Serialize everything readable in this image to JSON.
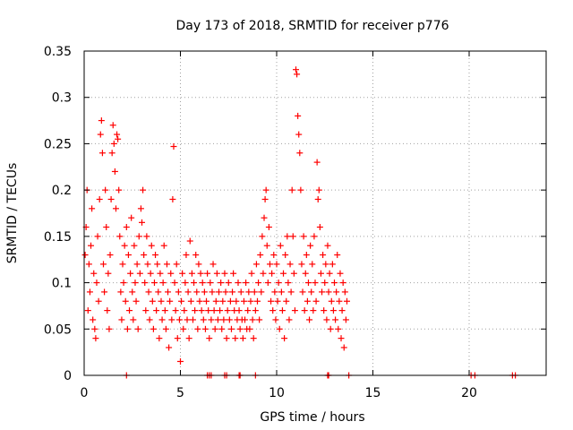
{
  "chart_data": {
    "type": "scatter",
    "title": "Day 173 of 2018, SRMTID for receiver p776",
    "xlabel": "GPS time / hours",
    "ylabel": "SRMTID / TECUs",
    "xlim": [
      0,
      24
    ],
    "ylim": [
      0,
      0.35
    ],
    "xticks": [
      0,
      5,
      10,
      15,
      20
    ],
    "xtick_labels": [
      "0",
      "5",
      "10",
      "15",
      "20"
    ],
    "yticks": [
      0,
      0.05,
      0.1,
      0.15,
      0.2,
      0.25,
      0.3,
      0.35
    ],
    "ytick_labels": [
      "0",
      "0.05",
      "0.1",
      "0.15",
      "0.2",
      "0.25",
      "0.3",
      "0.35"
    ],
    "grid": true,
    "marker": "+",
    "series": [
      {
        "name": "SRMTID",
        "color": "#ff0000",
        "points": [
          [
            0.05,
            0.13
          ],
          [
            0.1,
            0.16
          ],
          [
            0.15,
            0.2
          ],
          [
            0.2,
            0.07
          ],
          [
            0.25,
            0.12
          ],
          [
            0.3,
            0.09
          ],
          [
            0.35,
            0.14
          ],
          [
            0.4,
            0.18
          ],
          [
            0.45,
            0.06
          ],
          [
            0.5,
            0.11
          ],
          [
            0.55,
            0.05
          ],
          [
            0.6,
            0.04
          ],
          [
            0.65,
            0.1
          ],
          [
            0.7,
            0.15
          ],
          [
            0.75,
            0.08
          ],
          [
            0.8,
            0.19
          ],
          [
            0.85,
            0.26
          ],
          [
            0.9,
            0.275
          ],
          [
            0.95,
            0.24
          ],
          [
            1.0,
            0.12
          ],
          [
            1.05,
            0.09
          ],
          [
            1.1,
            0.2
          ],
          [
            1.15,
            0.16
          ],
          [
            1.2,
            0.07
          ],
          [
            1.25,
            0.11
          ],
          [
            1.3,
            0.05
          ],
          [
            1.35,
            0.13
          ],
          [
            1.4,
            0.19
          ],
          [
            1.45,
            0.24
          ],
          [
            1.5,
            0.27
          ],
          [
            1.55,
            0.25
          ],
          [
            1.6,
            0.22
          ],
          [
            1.65,
            0.18
          ],
          [
            1.7,
            0.26
          ],
          [
            1.75,
            0.255
          ],
          [
            1.8,
            0.2
          ],
          [
            1.85,
            0.15
          ],
          [
            1.9,
            0.09
          ],
          [
            1.95,
            0.06
          ],
          [
            2.0,
            0.12
          ],
          [
            2.05,
            0.1
          ],
          [
            2.1,
            0.14
          ],
          [
            2.15,
            0.08
          ],
          [
            2.2,
            0.16
          ],
          [
            2.25,
            0.05
          ],
          [
            2.3,
            0.13
          ],
          [
            2.35,
            0.07
          ],
          [
            2.4,
            0.11
          ],
          [
            2.45,
            0.17
          ],
          [
            2.5,
            0.09
          ],
          [
            2.55,
            0.06
          ],
          [
            2.6,
            0.14
          ],
          [
            2.65,
            0.1
          ],
          [
            2.7,
            0.08
          ],
          [
            2.75,
            0.12
          ],
          [
            2.8,
            0.05
          ],
          [
            2.85,
            0.15
          ],
          [
            2.9,
            0.11
          ],
          [
            2.95,
            0.18
          ],
          [
            3.0,
            0.165
          ],
          [
            3.05,
            0.2
          ],
          [
            3.1,
            0.13
          ],
          [
            3.15,
            0.1
          ],
          [
            3.2,
            0.07
          ],
          [
            3.25,
            0.15
          ],
          [
            3.3,
            0.12
          ],
          [
            3.35,
            0.09
          ],
          [
            3.4,
            0.06
          ],
          [
            3.45,
            0.11
          ],
          [
            3.5,
            0.14
          ],
          [
            3.55,
            0.08
          ],
          [
            3.6,
            0.05
          ],
          [
            3.65,
            0.1
          ],
          [
            3.7,
            0.13
          ],
          [
            3.75,
            0.07
          ],
          [
            3.8,
            0.12
          ],
          [
            3.85,
            0.09
          ],
          [
            3.9,
            0.04
          ],
          [
            3.95,
            0.11
          ],
          [
            4.0,
            0.08
          ],
          [
            4.05,
            0.06
          ],
          [
            4.1,
            0.1
          ],
          [
            4.15,
            0.14
          ],
          [
            4.2,
            0.07
          ],
          [
            4.25,
            0.05
          ],
          [
            4.3,
            0.12
          ],
          [
            4.35,
            0.09
          ],
          [
            4.4,
            0.03
          ],
          [
            4.45,
            0.08
          ],
          [
            4.5,
            0.11
          ],
          [
            4.55,
            0.06
          ],
          [
            4.6,
            0.19
          ],
          [
            4.65,
            0.247
          ],
          [
            4.7,
            0.1
          ],
          [
            4.75,
            0.07
          ],
          [
            4.8,
            0.12
          ],
          [
            4.85,
            0.04
          ],
          [
            4.9,
            0.09
          ],
          [
            4.95,
            0.06
          ],
          [
            5.0,
            0.015
          ],
          [
            5.05,
            0.08
          ],
          [
            5.1,
            0.11
          ],
          [
            5.15,
            0.05
          ],
          [
            5.2,
            0.07
          ],
          [
            5.25,
            0.1
          ],
          [
            5.3,
            0.13
          ],
          [
            5.35,
            0.06
          ],
          [
            5.4,
            0.09
          ],
          [
            5.45,
            0.04
          ],
          [
            5.5,
            0.145
          ],
          [
            5.55,
            0.08
          ],
          [
            5.6,
            0.11
          ],
          [
            5.65,
            0.06
          ],
          [
            5.7,
            0.1
          ],
          [
            5.75,
            0.07
          ],
          [
            5.8,
            0.13
          ],
          [
            5.85,
            0.09
          ],
          [
            5.9,
            0.05
          ],
          [
            5.95,
            0.12
          ],
          [
            6.0,
            0.08
          ],
          [
            6.05,
            0.11
          ],
          [
            6.1,
            0.07
          ],
          [
            6.15,
            0.1
          ],
          [
            6.2,
            0.06
          ],
          [
            6.25,
            0.09
          ],
          [
            6.3,
            0.05
          ],
          [
            6.35,
            0.08
          ],
          [
            6.4,
            0.11
          ],
          [
            6.45,
            0.07
          ],
          [
            6.5,
            0.04
          ],
          [
            6.55,
            0.1
          ],
          [
            6.6,
            0.06
          ],
          [
            6.65,
            0.09
          ],
          [
            6.7,
            0.12
          ],
          [
            6.75,
            0.07
          ],
          [
            6.8,
            0.05
          ],
          [
            6.85,
            0.08
          ],
          [
            6.9,
            0.11
          ],
          [
            6.95,
            0.06
          ],
          [
            7.0,
            0.09
          ],
          [
            7.05,
            0.07
          ],
          [
            7.1,
            0.1
          ],
          [
            7.15,
            0.05
          ],
          [
            7.2,
            0.08
          ],
          [
            7.25,
            0.06
          ],
          [
            7.3,
            0.11
          ],
          [
            7.35,
            0.09
          ],
          [
            7.4,
            0.04
          ],
          [
            7.45,
            0.07
          ],
          [
            7.5,
            0.1
          ],
          [
            7.55,
            0.06
          ],
          [
            7.6,
            0.08
          ],
          [
            7.65,
            0.05
          ],
          [
            7.7,
            0.09
          ],
          [
            7.75,
            0.11
          ],
          [
            7.8,
            0.07
          ],
          [
            7.85,
            0.04
          ],
          [
            7.9,
            0.08
          ],
          [
            7.95,
            0.06
          ],
          [
            8.0,
            0.1
          ],
          [
            8.05,
            0.07
          ],
          [
            8.1,
            0.05
          ],
          [
            8.15,
            0.09
          ],
          [
            8.2,
            0.06
          ],
          [
            8.25,
            0.04
          ],
          [
            8.3,
            0.08
          ],
          [
            8.35,
            0.06
          ],
          [
            8.4,
            0.1
          ],
          [
            8.45,
            0.05
          ],
          [
            8.5,
            0.07
          ],
          [
            8.55,
            0.09
          ],
          [
            8.6,
            0.05
          ],
          [
            8.65,
            0.08
          ],
          [
            8.7,
            0.11
          ],
          [
            8.75,
            0.06
          ],
          [
            8.8,
            0.04
          ],
          [
            8.85,
            0.09
          ],
          [
            8.9,
            0.07
          ],
          [
            8.95,
            0.12
          ],
          [
            9.0,
            0.08
          ],
          [
            9.05,
            0.1
          ],
          [
            9.1,
            0.06
          ],
          [
            9.15,
            0.13
          ],
          [
            9.2,
            0.09
          ],
          [
            9.25,
            0.15
          ],
          [
            9.3,
            0.11
          ],
          [
            9.35,
            0.17
          ],
          [
            9.4,
            0.19
          ],
          [
            9.45,
            0.2
          ],
          [
            9.5,
            0.14
          ],
          [
            9.55,
            0.1
          ],
          [
            9.6,
            0.16
          ],
          [
            9.65,
            0.12
          ],
          [
            9.7,
            0.08
          ],
          [
            9.75,
            0.11
          ],
          [
            9.8,
            0.07
          ],
          [
            9.85,
            0.13
          ],
          [
            9.9,
            0.09
          ],
          [
            9.95,
            0.06
          ],
          [
            10.0,
            0.12
          ],
          [
            10.05,
            0.08
          ],
          [
            10.1,
            0.1
          ],
          [
            10.15,
            0.05
          ],
          [
            10.2,
            0.14
          ],
          [
            10.25,
            0.09
          ],
          [
            10.3,
            0.07
          ],
          [
            10.35,
            0.11
          ],
          [
            10.4,
            0.04
          ],
          [
            10.45,
            0.13
          ],
          [
            10.5,
            0.08
          ],
          [
            10.55,
            0.15
          ],
          [
            10.6,
            0.1
          ],
          [
            10.65,
            0.06
          ],
          [
            10.7,
            0.12
          ],
          [
            10.75,
            0.09
          ],
          [
            10.8,
            0.2
          ],
          [
            10.85,
            0.15
          ],
          [
            10.9,
            0.11
          ],
          [
            10.95,
            0.07
          ],
          [
            11.0,
            0.33
          ],
          [
            11.05,
            0.325
          ],
          [
            11.1,
            0.28
          ],
          [
            11.15,
            0.26
          ],
          [
            11.2,
            0.24
          ],
          [
            11.25,
            0.2
          ],
          [
            11.3,
            0.12
          ],
          [
            11.35,
            0.09
          ],
          [
            11.4,
            0.15
          ],
          [
            11.45,
            0.07
          ],
          [
            11.5,
            0.11
          ],
          [
            11.55,
            0.13
          ],
          [
            11.6,
            0.08
          ],
          [
            11.65,
            0.1
          ],
          [
            11.7,
            0.06
          ],
          [
            11.75,
            0.14
          ],
          [
            11.8,
            0.09
          ],
          [
            11.85,
            0.12
          ],
          [
            11.9,
            0.07
          ],
          [
            11.95,
            0.15
          ],
          [
            12.0,
            0.1
          ],
          [
            12.05,
            0.08
          ],
          [
            12.1,
            0.23
          ],
          [
            12.15,
            0.19
          ],
          [
            12.2,
            0.2
          ],
          [
            12.25,
            0.16
          ],
          [
            12.3,
            0.11
          ],
          [
            12.35,
            0.09
          ],
          [
            12.4,
            0.13
          ],
          [
            12.45,
            0.07
          ],
          [
            12.5,
            0.1
          ],
          [
            12.55,
            0.12
          ],
          [
            12.6,
            0.06
          ],
          [
            12.65,
            0.14
          ],
          [
            12.7,
            0.09
          ],
          [
            12.75,
            0.11
          ],
          [
            12.8,
            0.05
          ],
          [
            12.85,
            0.08
          ],
          [
            12.9,
            0.12
          ],
          [
            12.95,
            0.07
          ],
          [
            13.0,
            0.1
          ],
          [
            13.05,
            0.06
          ],
          [
            13.1,
            0.09
          ],
          [
            13.15,
            0.13
          ],
          [
            13.2,
            0.05
          ],
          [
            13.25,
            0.08
          ],
          [
            13.3,
            0.11
          ],
          [
            13.35,
            0.04
          ],
          [
            13.4,
            0.07
          ],
          [
            13.45,
            0.1
          ],
          [
            13.5,
            0.03
          ],
          [
            13.55,
            0.09
          ],
          [
            13.6,
            0.06
          ],
          [
            13.65,
            0.08
          ]
        ]
      }
    ],
    "zero_points_x": [
      2.2,
      6.4,
      6.5,
      6.6,
      7.3,
      7.4,
      8.05,
      8.1,
      8.9,
      12.65,
      12.7,
      13.75,
      20.1,
      20.3,
      22.25,
      22.4
    ]
  }
}
